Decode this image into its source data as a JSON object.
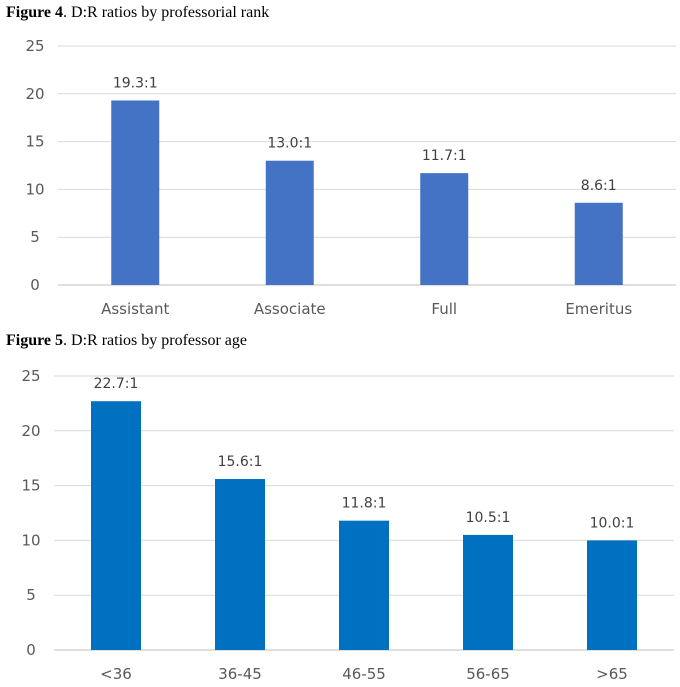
{
  "figures": [
    {
      "caption_bold": "Figure 4",
      "caption_rest": ". D:R ratios by professorial rank"
    },
    {
      "caption_bold": "Figure 5",
      "caption_rest": ". D:R ratios by professor age"
    }
  ],
  "chart_data": [
    {
      "type": "bar",
      "title": "Figure 4. D:R ratios by professorial rank",
      "categories": [
        "Assistant",
        "Associate",
        "Full",
        "Emeritus"
      ],
      "values": [
        19.3,
        13.0,
        11.7,
        8.6
      ],
      "data_labels": [
        "19.3:1",
        "13.0:1",
        "11.7:1",
        "8.6:1"
      ],
      "yticks": [
        "0",
        "5",
        "10",
        "15",
        "20",
        "25"
      ],
      "ylim": [
        0,
        25
      ],
      "grid": true,
      "bar_color": "#4472c4"
    },
    {
      "type": "bar",
      "title": "Figure 5. D:R ratios by professor age",
      "categories": [
        "<36",
        "36-45",
        "46-55",
        "56-65",
        ">65"
      ],
      "values": [
        22.7,
        15.6,
        11.8,
        10.5,
        10.0
      ],
      "data_labels": [
        "22.7:1",
        "15.6:1",
        "11.8:1",
        "10.5:1",
        "10.0:1"
      ],
      "yticks": [
        "0",
        "5",
        "10",
        "15",
        "20",
        "25"
      ],
      "ylim": [
        0,
        25
      ],
      "grid": true,
      "bar_color": "#0070c0"
    }
  ]
}
